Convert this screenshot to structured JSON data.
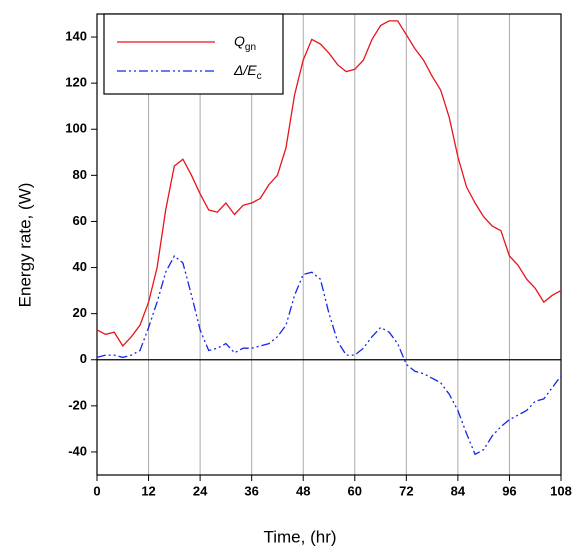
{
  "chart_data": {
    "type": "line",
    "x_label": "Time, (hr)",
    "y_label": "Energy rate, (W)",
    "x": [
      0,
      2,
      4,
      6,
      8,
      10,
      12,
      14,
      16,
      18,
      20,
      22,
      24,
      26,
      28,
      30,
      32,
      34,
      36,
      38,
      40,
      42,
      44,
      46,
      48,
      50,
      52,
      54,
      56,
      58,
      60,
      62,
      64,
      66,
      68,
      70,
      72,
      74,
      76,
      78,
      80,
      82,
      84,
      86,
      88,
      90,
      92,
      94,
      96,
      98,
      100,
      102,
      104,
      106,
      108
    ],
    "series": [
      {
        "name": "Q",
        "name_subscript": "gn",
        "color": "#e8141a",
        "dash": "solid",
        "values": [
          13,
          11,
          12,
          6,
          10,
          15,
          25,
          40,
          65,
          84,
          87,
          80,
          72,
          65,
          64,
          68,
          63,
          67,
          68,
          70,
          76,
          80,
          92,
          115,
          130,
          139,
          137,
          133,
          128,
          125,
          126,
          130,
          139,
          145,
          147,
          147,
          141,
          135,
          130,
          123,
          117,
          105,
          88,
          75,
          68,
          62,
          58,
          56,
          45,
          41,
          35,
          31,
          25,
          28,
          30
        ]
      },
      {
        "name": "Δ/E",
        "name_subscript": "c",
        "color": "#1428e8",
        "dash": "dash-dot-dot",
        "values": [
          1,
          2,
          2,
          1,
          2,
          4,
          14,
          25,
          38,
          45,
          42,
          28,
          13,
          4,
          5,
          7,
          3,
          5,
          5,
          6,
          7,
          10,
          15,
          28,
          37,
          38,
          35,
          20,
          8,
          2,
          2,
          5,
          10,
          14,
          12,
          7,
          -2,
          -5,
          -6,
          -8,
          -10,
          -15,
          -22,
          -32,
          -41,
          -39,
          -33,
          -29,
          -26,
          -24,
          -22,
          -18,
          -17,
          -12,
          -7
        ]
      }
    ],
    "xlim": [
      0,
      108
    ],
    "xticks": [
      0,
      12,
      24,
      36,
      48,
      60,
      72,
      84,
      96,
      108
    ],
    "ylim": [
      -50,
      150
    ],
    "yticks": [
      -40,
      -20,
      0,
      20,
      40,
      60,
      80,
      100,
      120,
      140
    ],
    "grid": "x",
    "legend": "upper left"
  }
}
